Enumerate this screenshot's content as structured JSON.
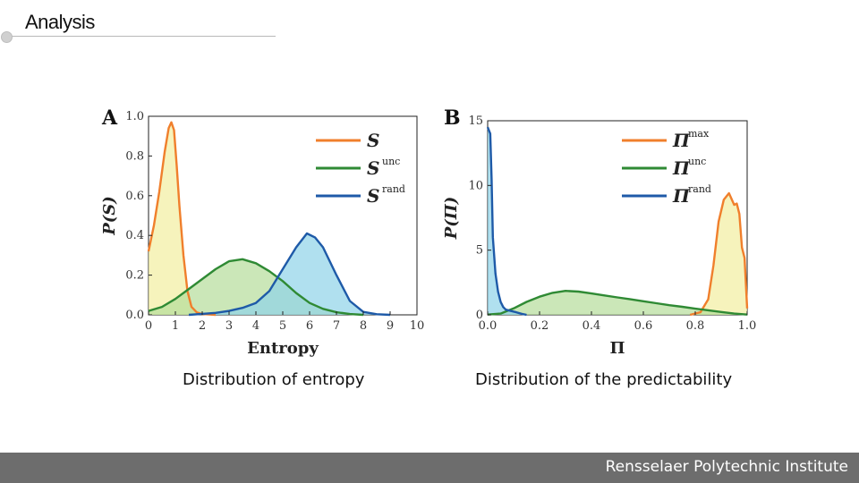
{
  "slide": {
    "title": "Analysis",
    "footer": "Rensselaer Polytechnic Institute"
  },
  "captions": {
    "left": "Distribution of entropy",
    "right": "Distribution of the predictability"
  },
  "chart_data": [
    {
      "type": "area",
      "panel_label": "A",
      "xlabel": "Entropy",
      "ylabel": "P(S)",
      "xlim": [
        0,
        10
      ],
      "ylim": [
        0,
        1.0
      ],
      "xticks": [
        0,
        1,
        2,
        3,
        4,
        5,
        6,
        7,
        8,
        9,
        10
      ],
      "yticks": [
        0.0,
        0.2,
        0.4,
        0.6,
        0.8,
        1.0
      ],
      "legend_position": "top-right",
      "series": [
        {
          "name": "S",
          "sup": "",
          "color": "#f07f2c",
          "fill": "#f2eea0",
          "points": [
            [
              0,
              0.32
            ],
            [
              0.2,
              0.45
            ],
            [
              0.4,
              0.62
            ],
            [
              0.6,
              0.82
            ],
            [
              0.75,
              0.94
            ],
            [
              0.85,
              0.97
            ],
            [
              0.95,
              0.93
            ],
            [
              1.05,
              0.75
            ],
            [
              1.15,
              0.55
            ],
            [
              1.3,
              0.3
            ],
            [
              1.45,
              0.12
            ],
            [
              1.6,
              0.04
            ],
            [
              1.8,
              0.012
            ],
            [
              2.0,
              0.004
            ],
            [
              2.5,
              0
            ]
          ]
        },
        {
          "name": "S",
          "sup": "unc",
          "color": "#2f8a34",
          "fill": "#b5dd9a",
          "points": [
            [
              0,
              0.02
            ],
            [
              0.5,
              0.04
            ],
            [
              1.0,
              0.08
            ],
            [
              1.5,
              0.13
            ],
            [
              2.0,
              0.18
            ],
            [
              2.5,
              0.23
            ],
            [
              3.0,
              0.27
            ],
            [
              3.5,
              0.28
            ],
            [
              4.0,
              0.26
            ],
            [
              4.5,
              0.22
            ],
            [
              5.0,
              0.17
            ],
            [
              5.5,
              0.11
            ],
            [
              6.0,
              0.06
            ],
            [
              6.5,
              0.03
            ],
            [
              7.0,
              0.013
            ],
            [
              7.5,
              0.004
            ],
            [
              8.0,
              0
            ]
          ]
        },
        {
          "name": "S",
          "sup": "rand",
          "color": "#1e5aa8",
          "fill": "#8fd3e8",
          "points": [
            [
              1.5,
              0
            ],
            [
              2.0,
              0.005
            ],
            [
              2.5,
              0.01
            ],
            [
              3.0,
              0.02
            ],
            [
              3.5,
              0.035
            ],
            [
              4.0,
              0.06
            ],
            [
              4.5,
              0.12
            ],
            [
              5.0,
              0.23
            ],
            [
              5.5,
              0.34
            ],
            [
              5.9,
              0.41
            ],
            [
              6.2,
              0.39
            ],
            [
              6.5,
              0.34
            ],
            [
              7.0,
              0.2
            ],
            [
              7.5,
              0.07
            ],
            [
              8.0,
              0.015
            ],
            [
              8.5,
              0.003
            ],
            [
              9.0,
              0
            ]
          ]
        }
      ]
    },
    {
      "type": "area",
      "panel_label": "B",
      "xlabel": "Π",
      "ylabel": "P(Π)",
      "xlim": [
        0,
        1.0
      ],
      "ylim": [
        0,
        15
      ],
      "xticks": [
        0.0,
        0.2,
        0.4,
        0.6,
        0.8,
        1.0
      ],
      "yticks": [
        0,
        5,
        10,
        15
      ],
      "legend_position": "top-right",
      "series": [
        {
          "name": "Π",
          "sup": "max",
          "color": "#f07f2c",
          "fill": "#f2eea0",
          "points": [
            [
              0.78,
              0
            ],
            [
              0.82,
              0.2
            ],
            [
              0.85,
              1.2
            ],
            [
              0.87,
              3.8
            ],
            [
              0.89,
              7.2
            ],
            [
              0.91,
              8.9
            ],
            [
              0.93,
              9.4
            ],
            [
              0.95,
              8.5
            ],
            [
              0.96,
              8.6
            ],
            [
              0.97,
              7.8
            ],
            [
              0.98,
              5.2
            ],
            [
              0.99,
              4.4
            ],
            [
              1.0,
              0.5
            ]
          ]
        },
        {
          "name": "Π",
          "sup": "unc",
          "color": "#2f8a34",
          "fill": "#b5dd9a",
          "points": [
            [
              0.0,
              0.02
            ],
            [
              0.05,
              0.1
            ],
            [
              0.1,
              0.5
            ],
            [
              0.15,
              1.0
            ],
            [
              0.2,
              1.4
            ],
            [
              0.25,
              1.7
            ],
            [
              0.3,
              1.85
            ],
            [
              0.35,
              1.8
            ],
            [
              0.4,
              1.65
            ],
            [
              0.45,
              1.5
            ],
            [
              0.5,
              1.35
            ],
            [
              0.55,
              1.2
            ],
            [
              0.6,
              1.05
            ],
            [
              0.65,
              0.9
            ],
            [
              0.7,
              0.75
            ],
            [
              0.75,
              0.62
            ],
            [
              0.8,
              0.48
            ],
            [
              0.85,
              0.35
            ],
            [
              0.9,
              0.22
            ],
            [
              0.95,
              0.1
            ],
            [
              1.0,
              0.02
            ]
          ]
        },
        {
          "name": "Π",
          "sup": "rand",
          "color": "#1e5aa8",
          "fill": "#8fd3e8",
          "points": [
            [
              0.0,
              14.5
            ],
            [
              0.01,
              14.0
            ],
            [
              0.015,
              10.5
            ],
            [
              0.02,
              6.0
            ],
            [
              0.03,
              3.2
            ],
            [
              0.04,
              1.8
            ],
            [
              0.05,
              1.0
            ],
            [
              0.06,
              0.6
            ],
            [
              0.07,
              0.4
            ],
            [
              0.09,
              0.3
            ],
            [
              0.11,
              0.2
            ],
            [
              0.13,
              0.08
            ],
            [
              0.15,
              0
            ]
          ]
        }
      ]
    }
  ]
}
